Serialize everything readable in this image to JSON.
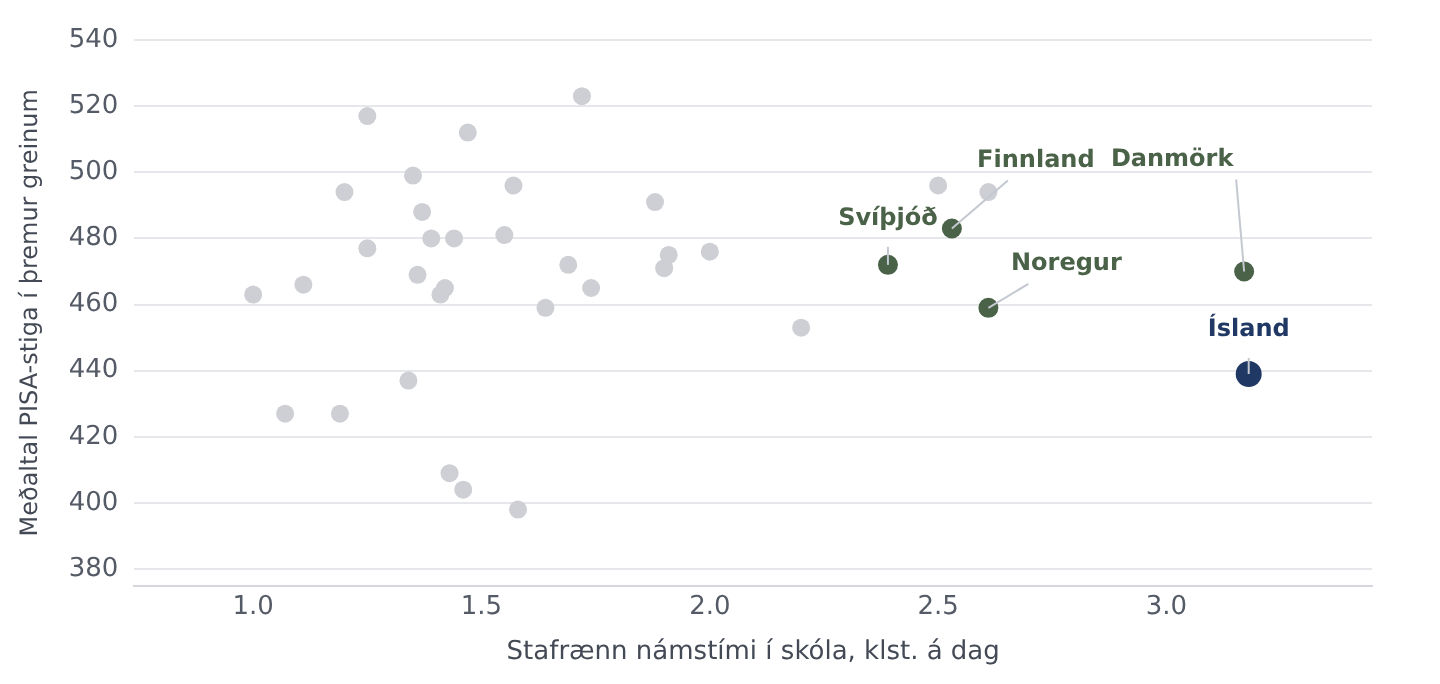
{
  "chart_data": {
    "type": "scatter",
    "xlabel": "Stafrænn námstími í skóla, klst. á dag",
    "ylabel": "Meðaltal PISA-stiga í þremur greinum",
    "xlim": [
      0.74,
      3.45
    ],
    "xticks": [
      {
        "value": 1,
        "label": "1.0"
      },
      {
        "value": 1.5,
        "label": "1.5"
      },
      {
        "value": 2,
        "label": "2.0"
      },
      {
        "value": 2.5,
        "label": "2.5"
      },
      {
        "value": 3,
        "label": "3.0"
      }
    ],
    "ylim": [
      375,
      540
    ],
    "yticks": [
      380,
      400,
      420,
      440,
      460,
      480,
      500,
      520,
      540
    ],
    "grid": "y",
    "legend": false,
    "marker": "circle",
    "series": [
      {
        "color": "#cdcfd4",
        "x": [
          1.0,
          1.11,
          1.07,
          1.19,
          1.25,
          1.2,
          1.25,
          1.35,
          1.37,
          1.39,
          1.44,
          1.47,
          1.36,
          1.41,
          1.42,
          1.34,
          1.43,
          1.46,
          1.58,
          1.57,
          1.55,
          1.72,
          1.64,
          1.69,
          1.74,
          1.88,
          1.91,
          1.9,
          2.0,
          2.2,
          2.5,
          2.61
        ],
        "values": [
          463,
          466,
          427,
          427,
          517,
          494,
          477,
          499,
          488,
          480,
          480,
          512,
          469,
          463,
          465,
          437,
          409,
          404,
          398,
          496,
          481,
          523,
          459,
          472,
          465,
          491,
          475,
          471,
          476,
          453,
          496,
          494
        ]
      },
      {
        "name": "Svíþjóð",
        "color": "#4a6248",
        "x": [
          2.39
        ],
        "values": [
          472
        ]
      },
      {
        "name": "Finnland",
        "color": "#4a6248",
        "x": [
          2.53
        ],
        "values": [
          483
        ]
      },
      {
        "name": "Noregur",
        "color": "#4a6248",
        "x": [
          2.61
        ],
        "values": [
          459
        ]
      },
      {
        "name": "Danmörk",
        "color": "#4a6248",
        "x": [
          3.17
        ],
        "values": [
          470
        ]
      },
      {
        "name": "Ísland",
        "color": "#1f3864",
        "x": [
          3.18
        ],
        "values": [
          439
        ]
      }
    ]
  }
}
